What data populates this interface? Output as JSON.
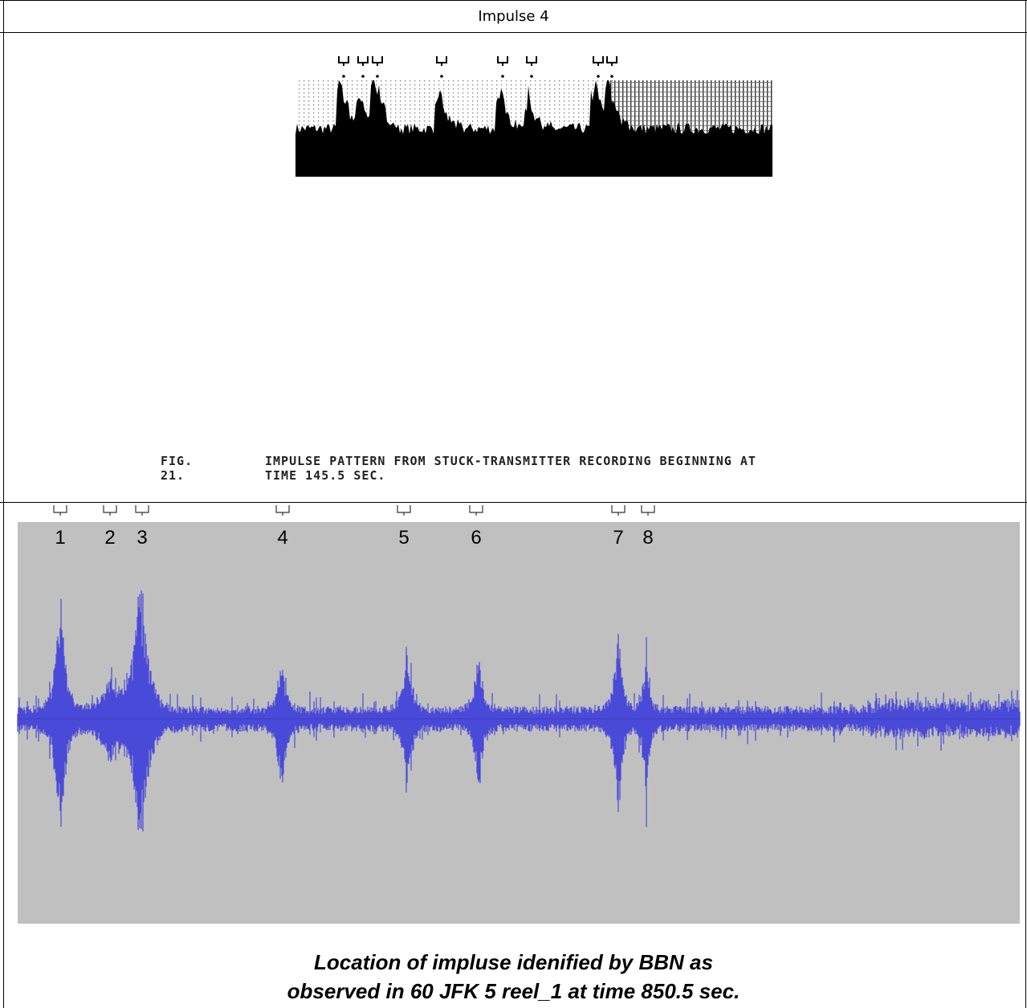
{
  "header": {
    "title": "Impulse 4"
  },
  "figure": {
    "label": "FIG. 21.",
    "caption_lines": [
      "IMPULSE PATTERN FROM STUCK-TRANSMITTER RECORDING BEGINNING AT",
      "TIME 145.5 SEC."
    ]
  },
  "waveform": {
    "markers": [
      "1",
      "2",
      "3",
      "4",
      "5",
      "6",
      "7",
      "8"
    ]
  },
  "caption": {
    "lines": [
      "Location of impluse idenified by BBN as",
      "observed in 60 JFK 5 reel_1 at time 850.5 sec."
    ]
  }
}
